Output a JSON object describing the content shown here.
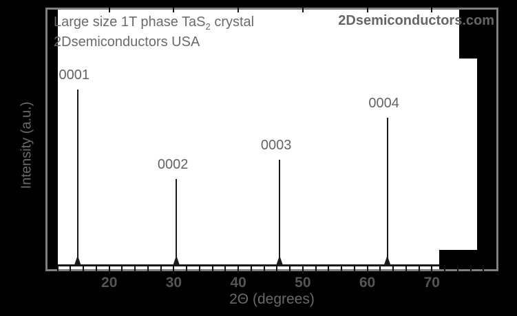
{
  "header": {
    "title_prefix": "Large size 1T phase TaS",
    "title_sub": "2",
    "title_suffix": " crystal",
    "subtitle": "2Dsemiconductors USA",
    "watermark": "2Dsemiconductors.com"
  },
  "colors": {
    "background": "#000000",
    "plot_background": "#ffffff",
    "frame": "#7f7f7f",
    "text": "#6a6a6a",
    "tick": "#111111",
    "tick_label": "#555555",
    "peak": "#1a1a1a",
    "peak_label": "#636363",
    "watermark": "#666666"
  },
  "chart_data": {
    "type": "line",
    "subtype": "xrd-pattern",
    "title": "Large size 1T phase TaS2 crystal",
    "subtitle": "2Dsemiconductors USA",
    "xlabel": "2Θ (degrees)",
    "ylabel": "Intensity (a.u.)",
    "xlim": [
      10,
      80
    ],
    "x_major_ticks": [
      20,
      30,
      40,
      50,
      60,
      70
    ],
    "x_minor_tick_step": 2,
    "grid": false,
    "legend": "none",
    "series": [
      {
        "name": "1T TaS2",
        "peaks": [
          {
            "label": "0001",
            "two_theta": 15.1,
            "rel_intensity": 100
          },
          {
            "label": "0002",
            "two_theta": 30.4,
            "rel_intensity": 49
          },
          {
            "label": "0003",
            "two_theta": 46.4,
            "rel_intensity": 60
          },
          {
            "label": "0004",
            "two_theta": 63.1,
            "rel_intensity": 84
          }
        ]
      }
    ]
  }
}
